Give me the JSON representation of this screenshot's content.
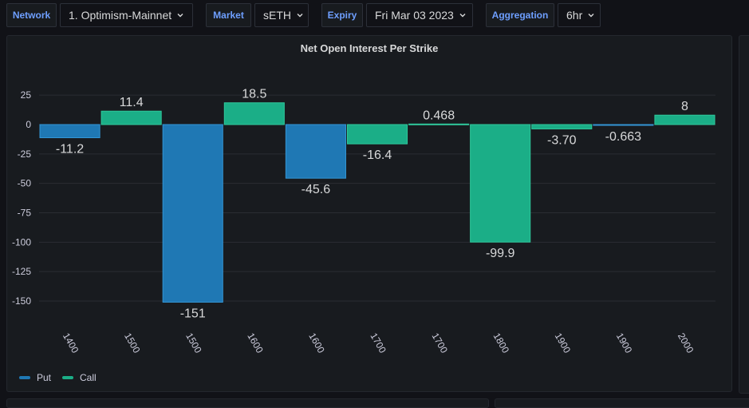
{
  "toolbar": {
    "network_label": "Network",
    "network_value": "1. Optimism-Mainnet",
    "market_label": "Market",
    "market_value": "sETH",
    "expiry_label": "Expiry",
    "expiry_value": "Fri Mar 03 2023",
    "aggregation_label": "Aggregation",
    "aggregation_value": "6hr"
  },
  "colors": {
    "put": "#1f78b4",
    "call": "#1bae87",
    "put_border": "#3396d6",
    "call_border": "#2fc99c",
    "grid": "#2a2d33"
  },
  "chart_data": {
    "type": "bar",
    "title": "Net Open Interest Per Strike",
    "categories": [
      "1400",
      "1500",
      "1500",
      "1600",
      "1600",
      "1700",
      "1700",
      "1800",
      "1900",
      "1900",
      "2000"
    ],
    "bar_series": [
      "Put",
      "Call",
      "Put",
      "Call",
      "Put",
      "Call",
      "Call",
      "Call",
      "Call",
      "Put",
      "Call"
    ],
    "values": [
      -11.2,
      11.4,
      -151,
      18.5,
      -45.6,
      -16.4,
      0.468,
      -99.9,
      -3.7,
      -0.663,
      8
    ],
    "value_labels": [
      "-11.2",
      "11.4",
      "-151",
      "18.5",
      "-45.6",
      "-16.4",
      "0.468",
      "-99.9",
      "-3.70",
      "-0.663",
      "8"
    ],
    "series": [
      {
        "name": "Put"
      },
      {
        "name": "Call"
      }
    ],
    "ylim": [
      -155,
      30
    ],
    "yticks": [
      25,
      0,
      -25,
      -50,
      -75,
      -100,
      -125,
      -150
    ],
    "ytick_labels": [
      "25",
      "0",
      "-25",
      "-50",
      "-75",
      "-100",
      "-125",
      "-150"
    ],
    "grid": true,
    "legend_position": "bottom-left"
  }
}
